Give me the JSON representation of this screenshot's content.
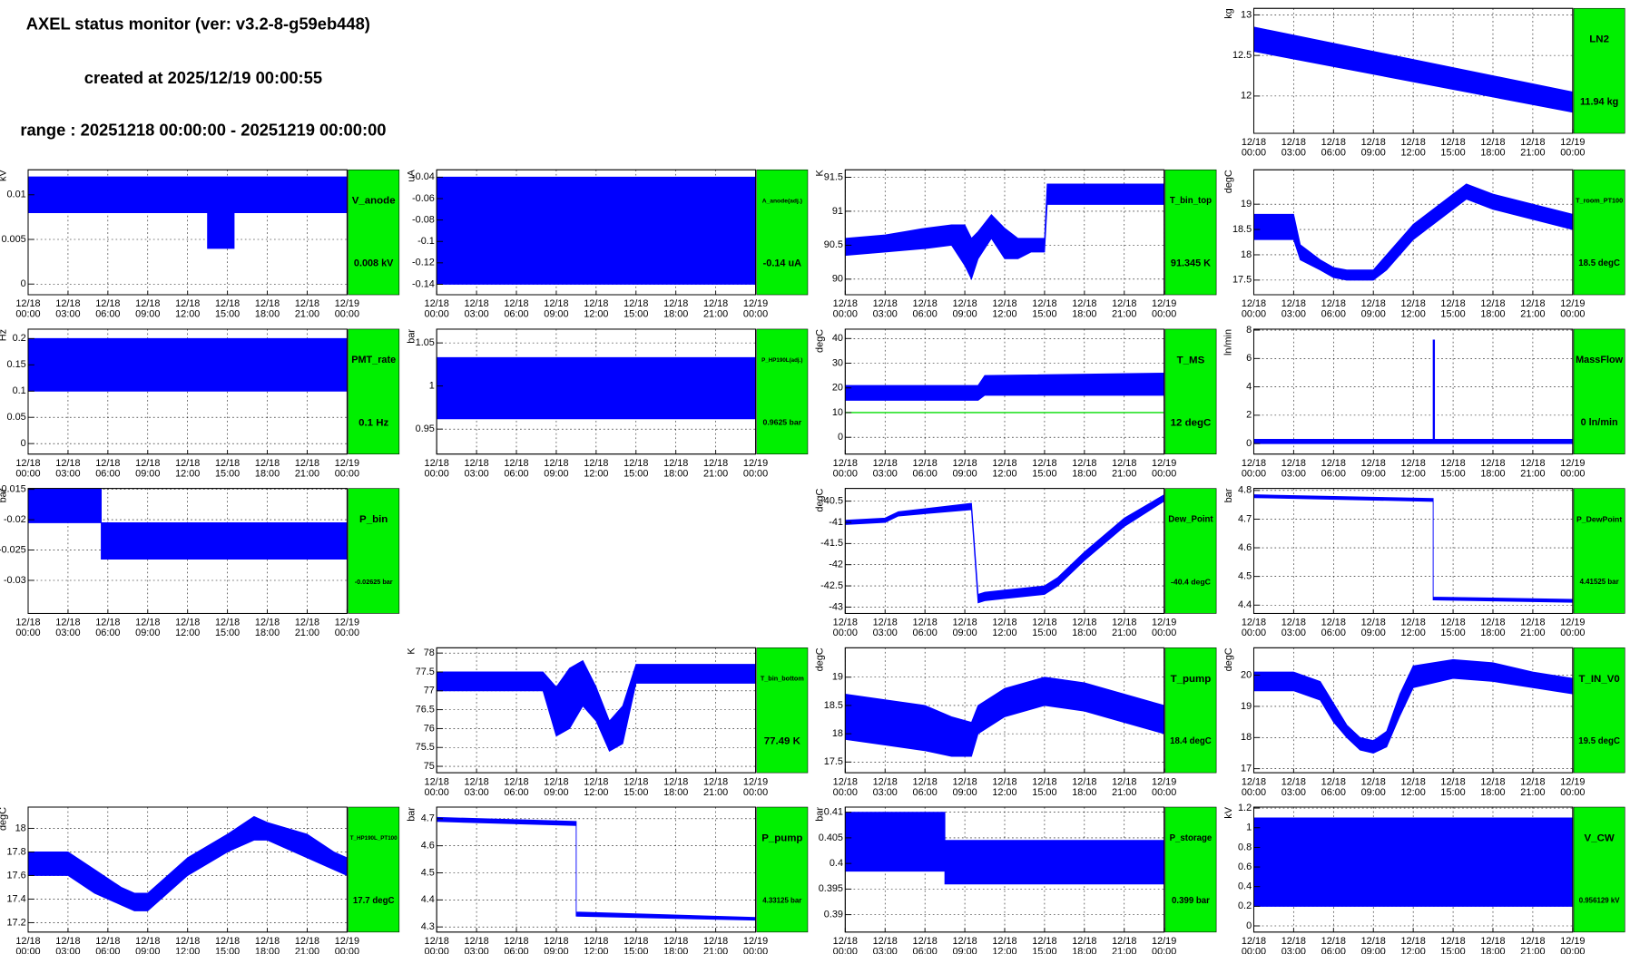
{
  "header": {
    "title": "AXEL status monitor (ver: v3.2-8-g59eb448)",
    "created": "created at 2025/12/19 00:00:55",
    "range": "range : 20251218 00:00:00 - 20251219 00:00:00"
  },
  "time_axis": {
    "xlim": [
      0,
      24
    ],
    "xticks": [
      {
        "value": 0,
        "date": "12/18",
        "time": "00:00"
      },
      {
        "value": 3,
        "date": "12/18",
        "time": "03:00"
      },
      {
        "value": 6,
        "date": "12/18",
        "time": "06:00"
      },
      {
        "value": 9,
        "date": "12/18",
        "time": "09:00"
      },
      {
        "value": 12,
        "date": "12/18",
        "time": "12:00"
      },
      {
        "value": 15,
        "date": "12/18",
        "time": "15:00"
      },
      {
        "value": 18,
        "date": "12/18",
        "time": "18:00"
      },
      {
        "value": 21,
        "date": "12/18",
        "time": "21:00"
      },
      {
        "value": 24,
        "date": "12/19",
        "time": "00:00"
      }
    ]
  },
  "chart_data": [
    {
      "type": "band",
      "title": "LN2",
      "value_label": "11.94 kg",
      "ylabel": "kg",
      "color": "#0000ff",
      "ylim": [
        11.54,
        13.08
      ],
      "yticks": [
        12,
        12.5,
        13
      ],
      "x": [
        0,
        24
      ],
      "high": [
        12.85,
        12.05
      ],
      "low": [
        12.55,
        11.8
      ]
    },
    {
      "type": "band",
      "title": "V_anode",
      "value_label": "0.008 kV",
      "ylabel": "kV",
      "color": "#0000ff",
      "ylim": [
        -0.0012,
        0.0128
      ],
      "yticks": [
        0,
        0.005,
        0.01
      ],
      "x": [
        0,
        13.5,
        13.5,
        15.5,
        15.5,
        24
      ],
      "high": [
        0.012,
        0.012,
        0.012,
        0.012,
        0.012,
        0.012
      ],
      "low": [
        0.008,
        0.008,
        0.004,
        0.004,
        0.008,
        0.008
      ]
    },
    {
      "type": "band",
      "title": "A_anode(adj.)",
      "value_label": "-0.14 uA",
      "ylabel": "uA",
      "color": "#0000ff",
      "ylim": [
        -0.1498,
        -0.0331
      ],
      "yticks": [
        -0.14,
        -0.12,
        -0.1,
        -0.08,
        -0.06,
        -0.04
      ],
      "x": [
        0,
        24
      ],
      "high": [
        -0.04,
        -0.04
      ],
      "low": [
        -0.14,
        -0.14
      ]
    },
    {
      "type": "band",
      "title": "T_bin_top",
      "value_label": "91.345 K",
      "ylabel": "K",
      "color": "#0000ff",
      "ylim": [
        89.77,
        91.61
      ],
      "yticks": [
        90,
        90.5,
        91,
        91.5
      ],
      "x": [
        0,
        3,
        6,
        8,
        9,
        9.5,
        10,
        11,
        12,
        13,
        14,
        15,
        15.2,
        24
      ],
      "high": [
        90.6,
        90.65,
        90.75,
        90.8,
        90.8,
        90.6,
        90.7,
        90.95,
        90.75,
        90.6,
        90.6,
        90.6,
        91.4,
        91.4
      ],
      "low": [
        90.35,
        90.4,
        90.45,
        90.5,
        90.2,
        90.0,
        90.3,
        90.6,
        90.3,
        90.3,
        90.4,
        90.4,
        91.1,
        91.1
      ]
    },
    {
      "type": "band",
      "title": "T_room_PT100",
      "value_label": "18.5 degC",
      "ylabel": "degC",
      "color": "#0000ff",
      "ylim": [
        17.21,
        19.68
      ],
      "yticks": [
        17.5,
        18,
        18.5,
        19
      ],
      "x": [
        0,
        3,
        3.5,
        5,
        6,
        7,
        9,
        10,
        12,
        15,
        16,
        18,
        21,
        24
      ],
      "high": [
        18.8,
        18.8,
        18.2,
        17.9,
        17.75,
        17.7,
        17.7,
        18.0,
        18.6,
        19.2,
        19.4,
        19.2,
        19.0,
        18.8
      ],
      "low": [
        18.3,
        18.3,
        17.9,
        17.7,
        17.55,
        17.5,
        17.5,
        17.7,
        18.3,
        18.9,
        19.1,
        18.9,
        18.7,
        18.5
      ]
    },
    {
      "type": "band",
      "title": "PMT_rate",
      "value_label": "0.1 Hz",
      "ylabel": "Hz",
      "color": "#0000ff",
      "ylim": [
        -0.02,
        0.218
      ],
      "yticks": [
        0,
        0.05,
        0.1,
        0.15,
        0.2
      ],
      "x": [
        0,
        24
      ],
      "high": [
        0.2,
        0.2
      ],
      "low": [
        0.1,
        0.1
      ]
    },
    {
      "type": "band",
      "title": "P_HP190L(adj.)",
      "value_label": "0.9625 bar",
      "ylabel": "bar",
      "color": "#0000ff",
      "ylim": [
        0.921,
        1.066
      ],
      "yticks": [
        0.95,
        1,
        1.05
      ],
      "x": [
        0,
        24
      ],
      "high": [
        1.033,
        1.033
      ],
      "low": [
        0.962,
        0.962
      ]
    },
    {
      "type": "band",
      "title": "T_MS",
      "value_label": "12 degC",
      "ylabel": "degC",
      "color": "#0000ff",
      "ylim": [
        -6.8,
        43.8
      ],
      "yticks": [
        0,
        10,
        20,
        30,
        40
      ],
      "threshold": 10,
      "threshold_color": "#00dd00",
      "x": [
        0,
        10,
        10.5,
        24
      ],
      "high": [
        21,
        21,
        25,
        26
      ],
      "low": [
        15,
        15,
        17,
        17
      ]
    },
    {
      "type": "band",
      "title": "MassFlow",
      "value_label": "0 ln/min",
      "ylabel": "ln/min",
      "color": "#0000ff",
      "ylim": [
        -0.74,
        8.07
      ],
      "yticks": [
        0,
        2,
        4,
        6,
        8
      ],
      "x": [
        0,
        13.5,
        13.5,
        13.6,
        13.6,
        24
      ],
      "high": [
        0.3,
        0.3,
        7.3,
        7.3,
        0.3,
        0.3
      ],
      "low": [
        0,
        0,
        0,
        0,
        0,
        0
      ]
    },
    {
      "type": "band",
      "title": "P_bin",
      "value_label": "-0.02625 bar",
      "ylabel": "bar",
      "color": "#0000ff",
      "ylim": [
        -0.03545,
        -0.01485
      ],
      "yticks": [
        -0.03,
        -0.025,
        -0.02,
        -0.015
      ],
      "x": [
        0,
        5.5,
        5.5,
        24
      ],
      "high": [
        -0.0145,
        -0.0145,
        -0.0205,
        -0.0205
      ],
      "low": [
        -0.0205,
        -0.0205,
        -0.0265,
        -0.0265
      ]
    },
    {
      "type": "band",
      "title": "Dew_Point",
      "value_label": "-40.4 degC",
      "ylabel": "degC",
      "color": "#0000ff",
      "ylim": [
        -43.15,
        -40.2
      ],
      "yticks": [
        -43,
        -42.5,
        -42,
        -41.5,
        -41,
        -40.5
      ],
      "x": [
        0,
        3,
        4,
        9.5,
        10,
        10.5,
        12,
        15,
        16,
        18,
        21,
        24
      ],
      "high": [
        -40.95,
        -40.9,
        -40.75,
        -40.55,
        -42.7,
        -42.65,
        -42.6,
        -42.5,
        -42.3,
        -41.7,
        -40.9,
        -40.35
      ],
      "low": [
        -41.05,
        -41.0,
        -40.85,
        -40.7,
        -42.9,
        -42.85,
        -42.8,
        -42.7,
        -42.5,
        -41.9,
        -41.1,
        -40.5
      ]
    },
    {
      "type": "band",
      "title": "P_DewPoint",
      "value_label": "4.41525 bar",
      "ylabel": "bar",
      "color": "#0000ff",
      "ylim": [
        4.371,
        4.807
      ],
      "yticks": [
        4.4,
        4.5,
        4.6,
        4.7,
        4.8
      ],
      "x": [
        0,
        13.5,
        13.5,
        24
      ],
      "high": [
        4.785,
        4.772,
        4.428,
        4.42
      ],
      "low": [
        4.775,
        4.762,
        4.418,
        4.41
      ]
    },
    {
      "type": "band",
      "title": "T_bin_bottom",
      "value_label": "77.49 K",
      "ylabel": "K",
      "color": "#0000ff",
      "ylim": [
        74.83,
        78.14
      ],
      "yticks": [
        75,
        75.5,
        76,
        76.5,
        77,
        77.5,
        78
      ],
      "x": [
        0,
        8,
        9,
        10,
        11,
        12,
        13,
        14,
        15,
        24
      ],
      "high": [
        77.5,
        77.5,
        77.1,
        77.6,
        77.8,
        77.1,
        76.2,
        76.6,
        77.7,
        77.7
      ],
      "low": [
        77,
        77,
        75.8,
        76,
        76.6,
        76.2,
        75.4,
        75.6,
        77.2,
        77.2
      ]
    },
    {
      "type": "band",
      "title": "T_pump",
      "value_label": "18.4 degC",
      "ylabel": "degC",
      "color": "#0000ff",
      "ylim": [
        17.31,
        19.52
      ],
      "yticks": [
        17.5,
        18,
        18.5,
        19
      ],
      "x": [
        0,
        3,
        6,
        8,
        9.5,
        10,
        12,
        15,
        18,
        21,
        24
      ],
      "high": [
        18.7,
        18.6,
        18.5,
        18.3,
        18.2,
        18.5,
        18.8,
        19.0,
        18.9,
        18.7,
        18.5
      ],
      "low": [
        17.9,
        17.8,
        17.7,
        17.6,
        17.6,
        18.0,
        18.3,
        18.5,
        18.4,
        18.2,
        18.0
      ]
    },
    {
      "type": "band",
      "title": "T_IN_V0",
      "value_label": "19.5 degC",
      "ylabel": "degC",
      "color": "#0000ff",
      "ylim": [
        16.87,
        20.88
      ],
      "yticks": [
        17,
        18,
        19,
        20
      ],
      "x": [
        0,
        3,
        5,
        6,
        7,
        8,
        9,
        10,
        11,
        12,
        15,
        18,
        21,
        24
      ],
      "high": [
        20.1,
        20.1,
        19.8,
        19.1,
        18.4,
        18.0,
        17.9,
        18.2,
        19.4,
        20.3,
        20.5,
        20.4,
        20.1,
        19.9
      ],
      "low": [
        19.5,
        19.5,
        19.2,
        18.5,
        18.0,
        17.6,
        17.5,
        17.7,
        18.7,
        19.6,
        19.9,
        19.8,
        19.6,
        19.4
      ]
    },
    {
      "type": "band",
      "title": "T_HP190L_PT100",
      "value_label": "17.7 degC",
      "ylabel": "degC",
      "color": "#0000ff",
      "ylim": [
        17.12,
        18.18
      ],
      "yticks": [
        17.2,
        17.4,
        17.6,
        17.8,
        18
      ],
      "x": [
        0,
        3,
        5,
        7,
        8,
        9,
        10,
        12,
        15,
        17,
        18,
        21,
        23,
        24
      ],
      "high": [
        17.8,
        17.8,
        17.65,
        17.5,
        17.45,
        17.45,
        17.55,
        17.75,
        17.95,
        18.1,
        18.05,
        17.95,
        17.8,
        17.75
      ],
      "low": [
        17.6,
        17.6,
        17.45,
        17.35,
        17.3,
        17.3,
        17.4,
        17.6,
        17.8,
        17.9,
        17.9,
        17.75,
        17.65,
        17.6
      ]
    },
    {
      "type": "band",
      "title": "P_pump",
      "value_label": "4.33125 bar",
      "ylabel": "bar",
      "color": "#0000ff",
      "ylim": [
        4.281,
        4.743
      ],
      "yticks": [
        4.3,
        4.4,
        4.5,
        4.6,
        4.7
      ],
      "x": [
        0,
        10.5,
        10.5,
        24
      ],
      "high": [
        4.705,
        4.69,
        4.355,
        4.335
      ],
      "low": [
        4.69,
        4.675,
        4.34,
        4.325
      ]
    },
    {
      "type": "band",
      "title": "P_storage",
      "value_label": "0.399 bar",
      "ylabel": "bar",
      "color": "#0000ff",
      "ylim": [
        0.3866,
        0.411
      ],
      "yticks": [
        0.39,
        0.395,
        0.4,
        0.405,
        0.41
      ],
      "x": [
        0,
        7.5,
        7.5,
        24
      ],
      "high": [
        0.41,
        0.41,
        0.4045,
        0.4045
      ],
      "low": [
        0.3985,
        0.3985,
        0.396,
        0.396
      ]
    },
    {
      "type": "band",
      "title": "V_CW",
      "value_label": "0.956129 kV",
      "ylabel": "kV",
      "color": "#0000ff",
      "ylim": [
        -0.063,
        1.21
      ],
      "yticks": [
        0,
        0.2,
        0.4,
        0.6,
        0.8,
        1,
        1.2
      ],
      "x": [
        0,
        24
      ],
      "high": [
        1.1,
        1.1
      ],
      "low": [
        0.2,
        0.2
      ]
    }
  ]
}
